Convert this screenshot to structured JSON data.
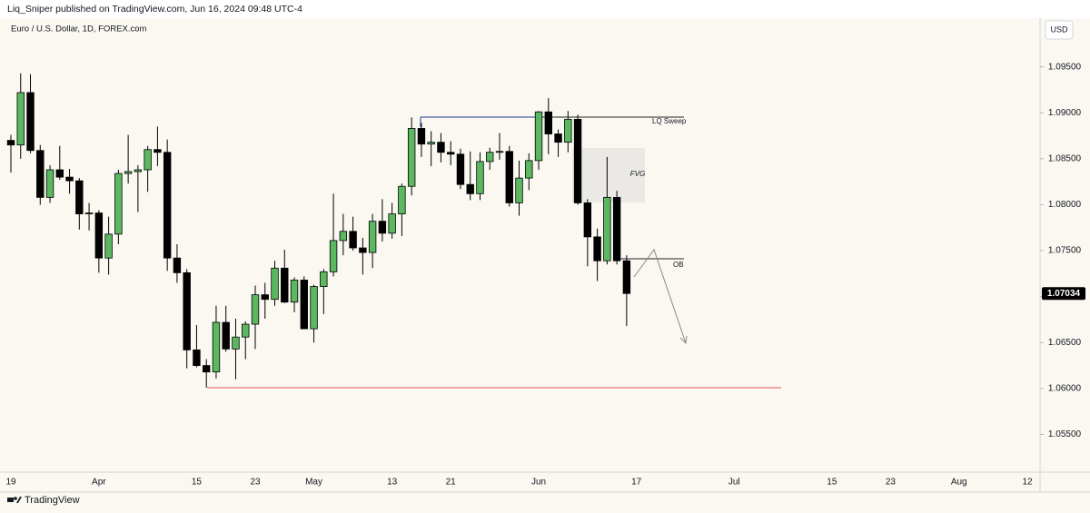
{
  "header": {
    "published": "Liq_Sniper published on TradingView.com, Jun 16, 2024 09:48 UTC-4",
    "brand": "TradingView"
  },
  "chart_data": {
    "type": "candlestick",
    "title": "Euro / U.S. Dollar, 1D, FOREX.com",
    "currency": "USD",
    "up_color": "#5cb860",
    "down_color": "#000000",
    "categories": [
      "19",
      null,
      null,
      null,
      null,
      null,
      null,
      null,
      null,
      "Apr",
      null,
      null,
      null,
      null,
      null,
      null,
      null,
      null,
      null,
      "15",
      null,
      null,
      null,
      null,
      null,
      "23",
      null,
      null,
      null,
      null,
      null,
      "May",
      null,
      null,
      null,
      null,
      null,
      null,
      null,
      "13",
      null,
      null,
      null,
      null,
      null,
      "21",
      null,
      null,
      null,
      null,
      null,
      null,
      null,
      null,
      "Jun",
      null,
      null,
      null,
      null,
      null,
      null,
      null,
      null,
      null,
      "17",
      null,
      null,
      null,
      null,
      null,
      null,
      null,
      null,
      null,
      "Jul",
      null,
      null,
      null,
      null,
      null,
      null,
      null,
      null,
      null,
      "15",
      null,
      null,
      null,
      null,
      null,
      "23",
      null,
      null,
      null,
      null,
      null,
      null,
      "Aug",
      null,
      null,
      null,
      null,
      null,
      null,
      "12"
    ],
    "open": [
      1.087,
      1.0865,
      1.0922,
      1.0859,
      1.0808,
      1.0838,
      1.083,
      1.0826,
      1.079,
      1.0791,
      1.0742,
      1.0768,
      1.0834,
      1.0836,
      1.0838,
      1.086,
      1.0857,
      1.0742,
      1.0726,
      1.0642,
      1.0625,
      1.0618,
      1.0672,
      1.0643,
      1.0656,
      1.067,
      1.0702,
      1.0697,
      1.0731,
      1.0694,
      1.0718,
      1.0665,
      1.0711,
      1.0727,
      1.0761,
      1.0771,
      1.0753,
      1.0748,
      1.0782,
      1.0769,
      1.079,
      1.082,
      1.0883,
      1.0866,
      1.0868,
      1.0857,
      1.0855,
      1.0822,
      1.0812,
      1.0847,
      1.0857,
      1.0858,
      1.0802,
      1.0829,
      1.0848,
      1.0901,
      1.0877,
      1.0868,
      1.0893,
      1.0802,
      1.0765,
      1.0739,
      1.0808,
      1.0739,
      null,
      null,
      null,
      null,
      null,
      null,
      null,
      null,
      null,
      null,
      null,
      null,
      null,
      null,
      null,
      null,
      null,
      null,
      null,
      null,
      null,
      null,
      null,
      null,
      null,
      null,
      null,
      null,
      null,
      null,
      null,
      null,
      null,
      null,
      null,
      null,
      null,
      null,
      null,
      null,
      null
    ],
    "high": [
      1.0876,
      1.0943,
      1.0942,
      1.0865,
      1.0843,
      1.0864,
      1.0839,
      1.0829,
      1.0802,
      1.0794,
      1.0787,
      1.0838,
      1.0876,
      1.0843,
      1.0864,
      1.0885,
      1.0871,
      1.0757,
      1.073,
      1.0669,
      1.0632,
      1.069,
      1.069,
      1.0676,
      1.0673,
      1.0712,
      1.0715,
      1.0739,
      1.0751,
      1.0721,
      1.0722,
      1.0713,
      1.073,
      1.0812,
      1.079,
      1.0787,
      1.0764,
      1.079,
      1.0806,
      1.0802,
      1.0823,
      1.0895,
      1.0889,
      1.088,
      1.0878,
      1.0869,
      1.0861,
      1.0858,
      1.0857,
      1.0862,
      1.0878,
      1.0864,
      1.0848,
      1.0856,
      1.0902,
      1.0916,
      1.0882,
      1.0902,
      1.0898,
      1.0806,
      1.0774,
      1.0852,
      1.0815,
      1.0745,
      null,
      null,
      null,
      null,
      null,
      null,
      null,
      null,
      null,
      null,
      null,
      null,
      null,
      null,
      null,
      null,
      null,
      null,
      null,
      null,
      null,
      null,
      null,
      null,
      null,
      null,
      null,
      null,
      null,
      null,
      null,
      null,
      null,
      null,
      null,
      null,
      null,
      null,
      null,
      null,
      null
    ],
    "low": [
      1.0835,
      1.085,
      1.0856,
      1.08,
      1.0802,
      1.0827,
      1.0812,
      1.0773,
      1.0772,
      1.0726,
      1.0724,
      1.0757,
      1.0823,
      1.0792,
      1.0814,
      1.0842,
      1.0728,
      1.0715,
      1.0622,
      1.0623,
      1.0601,
      1.0611,
      1.064,
      1.061,
      1.0632,
      1.0643,
      1.0676,
      1.069,
      1.0693,
      1.0683,
      1.0665,
      1.065,
      1.0681,
      1.0722,
      1.0745,
      1.075,
      1.0724,
      1.0731,
      1.076,
      1.0763,
      1.0766,
      1.081,
      1.0852,
      1.0842,
      1.0846,
      1.0843,
      1.0817,
      1.0805,
      1.0805,
      1.0838,
      1.0849,
      1.0798,
      1.0788,
      1.0816,
      1.0838,
      1.0855,
      1.0852,
      1.0857,
      1.08,
      1.0733,
      1.0717,
      1.0735,
      1.0735,
      1.0668,
      null,
      null,
      null,
      null,
      null,
      null,
      null,
      null,
      null,
      null,
      null,
      null,
      null,
      null,
      null,
      null,
      null,
      null,
      null,
      null,
      null,
      null,
      null,
      null,
      null,
      null,
      null,
      null,
      null,
      null,
      null,
      null,
      null,
      null,
      null,
      null,
      null,
      null,
      null,
      null,
      null
    ],
    "close": [
      1.0865,
      1.0922,
      1.0859,
      1.0808,
      1.0838,
      1.083,
      1.0826,
      1.079,
      1.0791,
      1.0742,
      1.0768,
      1.0834,
      1.0836,
      1.0838,
      1.086,
      1.0857,
      1.0742,
      1.0726,
      1.0642,
      1.0625,
      1.0618,
      1.0672,
      1.0643,
      1.0656,
      1.067,
      1.0702,
      1.0697,
      1.0731,
      1.0694,
      1.0718,
      1.0665,
      1.0711,
      1.0727,
      1.0761,
      1.0771,
      1.0753,
      1.0748,
      1.0782,
      1.0769,
      1.079,
      1.082,
      1.0883,
      1.0866,
      1.0868,
      1.0857,
      1.0855,
      1.0822,
      1.0812,
      1.0847,
      1.0857,
      1.0858,
      1.0802,
      1.0829,
      1.0848,
      1.0901,
      1.0877,
      1.0868,
      1.0893,
      1.0802,
      1.0765,
      1.0739,
      1.0808,
      1.0739,
      1.07034,
      null,
      null,
      null,
      null,
      null,
      null,
      null,
      null,
      null,
      null,
      null,
      null,
      null,
      null,
      null,
      null,
      null,
      null,
      null,
      null,
      null,
      null,
      null,
      null,
      null,
      null,
      null,
      null,
      null,
      null,
      null,
      null,
      null,
      null,
      null,
      null,
      null,
      null,
      null,
      null,
      null
    ],
    "ylim": [
      1.0509,
      1.1003
    ],
    "yticks": [
      {
        "value": 1.055,
        "label": "1.05500"
      },
      {
        "value": 1.06,
        "label": "1.06000"
      },
      {
        "value": 1.065,
        "label": "1.06500"
      },
      {
        "value": 1.07,
        "label": "1.07000"
      },
      {
        "value": 1.075,
        "label": "1.07500"
      },
      {
        "value": 1.08,
        "label": "1.08000"
      },
      {
        "value": 1.085,
        "label": "1.08500"
      },
      {
        "value": 1.09,
        "label": "1.09000"
      },
      {
        "value": 1.095,
        "label": "1.09500"
      }
    ],
    "annotations": {
      "sweep": "LQ Sweep",
      "gap": "FVG",
      "block": "OB"
    }
  }
}
